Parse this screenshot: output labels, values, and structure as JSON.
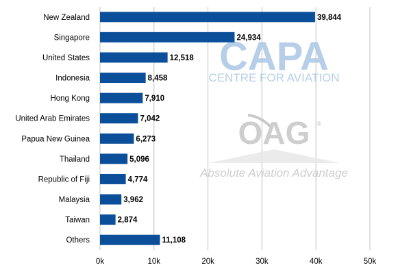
{
  "watermarks": {
    "capa_logo": "CAPA",
    "capa_tagline": "CENTRE FOR AVIATION",
    "oag_logo": "OAG",
    "oag_registered": "®",
    "oag_tagline": "Absolute Aviation Advantage"
  },
  "colors": {
    "bar": "#0b4f9a",
    "grid": "#c0c0c0",
    "capa_watermark": "#aac6e3",
    "oag_watermark": "#c9c9c9"
  },
  "chart_data": {
    "type": "bar",
    "orientation": "horizontal",
    "categories": [
      "New Zealand",
      "Singapore",
      "United States",
      "Indonesia",
      "Hong Kong",
      "United Arab Emirates",
      "Papua New Guinea",
      "Thailand",
      "Republic of Fiji",
      "Malaysia",
      "Taiwan",
      "Others"
    ],
    "values": [
      39844,
      24934,
      12518,
      8458,
      7910,
      7042,
      6273,
      5096,
      4774,
      3962,
      2874,
      11108
    ],
    "value_labels": [
      "39,844",
      "24,934",
      "12,518",
      "8,458",
      "7,910",
      "7,042",
      "6,273",
      "5,096",
      "4,774",
      "3,962",
      "2,874",
      "11,108"
    ],
    "xlim": [
      0,
      50000
    ],
    "x_ticks": [
      0,
      10000,
      20000,
      30000,
      40000,
      50000
    ],
    "x_tick_labels": [
      "0k",
      "10k",
      "20k",
      "30k",
      "40k",
      "50k"
    ],
    "grid": "vertical",
    "title": "",
    "xlabel": "",
    "ylabel": ""
  }
}
